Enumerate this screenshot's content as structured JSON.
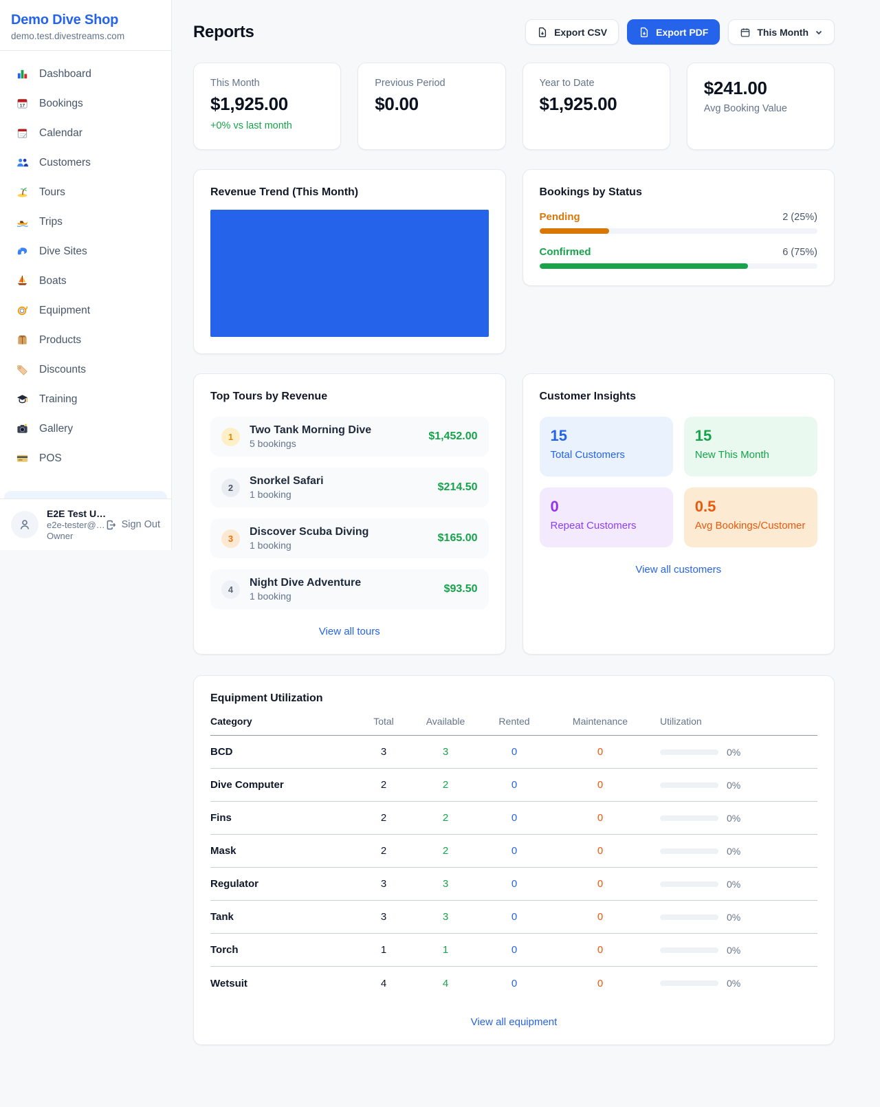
{
  "sidebar": {
    "title": "Demo Dive Shop",
    "domain": "demo.test.divestreams.com",
    "nav": [
      {
        "icon": "bar-chart",
        "label": "Dashboard"
      },
      {
        "icon": "calendar-date",
        "label": "Bookings"
      },
      {
        "icon": "calendar-pad",
        "label": "Calendar"
      },
      {
        "icon": "users",
        "label": "Customers"
      },
      {
        "icon": "island",
        "label": "Tours"
      },
      {
        "icon": "speedboat",
        "label": "Trips"
      },
      {
        "icon": "wave",
        "label": "Dive Sites"
      },
      {
        "icon": "sailboat",
        "label": "Boats"
      },
      {
        "icon": "dive-mask",
        "label": "Equipment"
      },
      {
        "icon": "package",
        "label": "Products"
      },
      {
        "icon": "tag",
        "label": "Discounts"
      },
      {
        "icon": "grad-cap",
        "label": "Training"
      },
      {
        "icon": "camera",
        "label": "Gallery"
      },
      {
        "icon": "credit-card",
        "label": "POS"
      }
    ],
    "user": {
      "name": "E2E Test U…",
      "email": "e2e-tester@…",
      "role": "Owner",
      "sign_out": "Sign Out"
    }
  },
  "header": {
    "title": "Reports",
    "export_csv": "Export CSV",
    "export_pdf": "Export PDF",
    "period": "This Month"
  },
  "stats": [
    {
      "label": "This Month",
      "value": "$1,925.00",
      "delta": "+0% vs last month"
    },
    {
      "label": "Previous Period",
      "value": "$0.00"
    },
    {
      "label": "Year to Date",
      "value": "$1,925.00"
    },
    {
      "label": "Avg Booking Value",
      "value": "$241.00"
    }
  ],
  "revenue_trend": {
    "title": "Revenue Trend (This Month)"
  },
  "bookings_by_status": {
    "title": "Bookings by Status",
    "items": [
      {
        "label": "Pending",
        "value": "2 (25%)",
        "pct": 25,
        "color": "#d97706"
      },
      {
        "label": "Confirmed",
        "value": "6 (75%)",
        "pct": 75,
        "color": "#16a34a"
      }
    ]
  },
  "top_tours": {
    "title": "Top Tours by Revenue",
    "link": "View all tours",
    "items": [
      {
        "rank": "1",
        "name": "Two Tank Morning Dive",
        "bookings": "5 bookings",
        "amount": "$1,452.00"
      },
      {
        "rank": "2",
        "name": "Snorkel Safari",
        "bookings": "1 booking",
        "amount": "$214.50"
      },
      {
        "rank": "3",
        "name": "Discover Scuba Diving",
        "bookings": "1 booking",
        "amount": "$165.00"
      },
      {
        "rank": "4",
        "name": "Night Dive Adventure",
        "bookings": "1 booking",
        "amount": "$93.50"
      }
    ]
  },
  "customer_insights": {
    "title": "Customer Insights",
    "link": "View all customers",
    "tiles": [
      {
        "value": "15",
        "label": "Total Customers",
        "theme": "blue"
      },
      {
        "value": "15",
        "label": "New This Month",
        "theme": "green"
      },
      {
        "value": "0",
        "label": "Repeat Customers",
        "theme": "purple"
      },
      {
        "value": "0.5",
        "label": "Avg Bookings/Customer",
        "theme": "orange"
      }
    ]
  },
  "equipment": {
    "title": "Equipment Utilization",
    "link": "View all equipment",
    "columns": [
      "Category",
      "Total",
      "Available",
      "Rented",
      "Maintenance",
      "Utilization"
    ],
    "rows": [
      {
        "category": "BCD",
        "total": "3",
        "available": "3",
        "rented": "0",
        "maintenance": "0",
        "utilization": "0%",
        "utilization_pct": 0
      },
      {
        "category": "Dive Computer",
        "total": "2",
        "available": "2",
        "rented": "0",
        "maintenance": "0",
        "utilization": "0%",
        "utilization_pct": 0
      },
      {
        "category": "Fins",
        "total": "2",
        "available": "2",
        "rented": "0",
        "maintenance": "0",
        "utilization": "0%",
        "utilization_pct": 0
      },
      {
        "category": "Mask",
        "total": "2",
        "available": "2",
        "rented": "0",
        "maintenance": "0",
        "utilization": "0%",
        "utilization_pct": 0
      },
      {
        "category": "Regulator",
        "total": "3",
        "available": "3",
        "rented": "0",
        "maintenance": "0",
        "utilization": "0%",
        "utilization_pct": 0
      },
      {
        "category": "Tank",
        "total": "3",
        "available": "3",
        "rented": "0",
        "maintenance": "0",
        "utilization": "0%",
        "utilization_pct": 0
      },
      {
        "category": "Torch",
        "total": "1",
        "available": "1",
        "rented": "0",
        "maintenance": "0",
        "utilization": "0%",
        "utilization_pct": 0
      },
      {
        "category": "Wetsuit",
        "total": "4",
        "available": "4",
        "rented": "0",
        "maintenance": "0",
        "utilization": "0%",
        "utilization_pct": 0
      }
    ]
  },
  "chart_data": [
    {
      "type": "bar",
      "title": "Revenue Trend (This Month)",
      "categories": [
        "This Month"
      ],
      "values": [
        1925
      ]
    },
    {
      "type": "bar",
      "title": "Bookings by Status",
      "categories": [
        "Pending",
        "Confirmed"
      ],
      "values": [
        2,
        6
      ],
      "percents": [
        25,
        75
      ]
    }
  ]
}
